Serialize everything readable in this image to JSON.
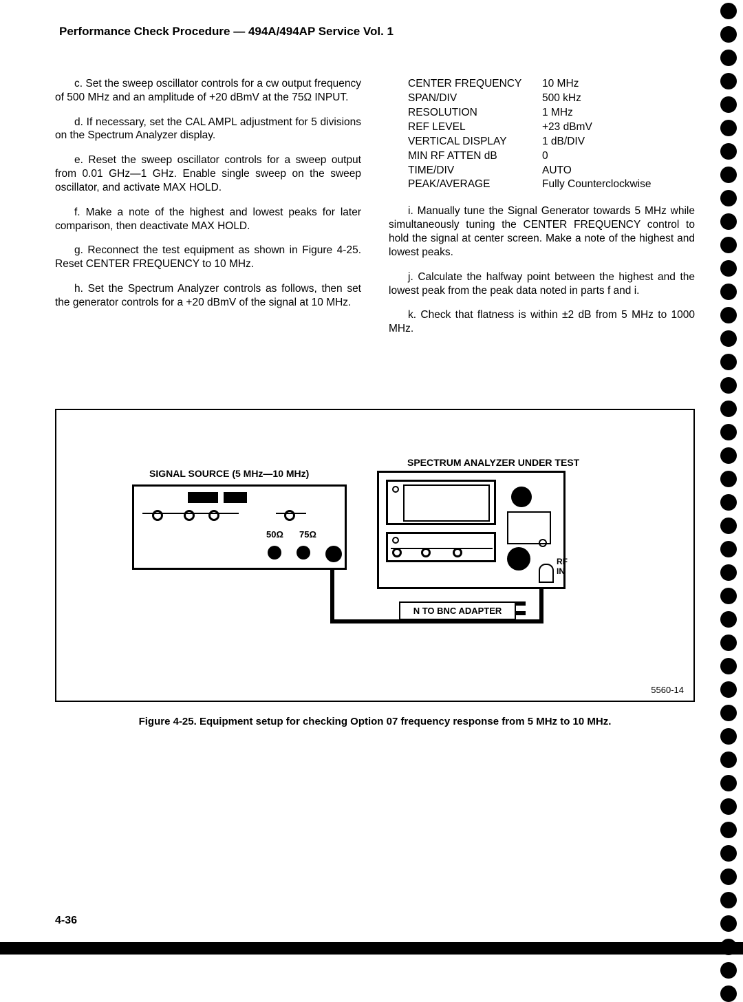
{
  "header": "Performance Check Procedure — 494A/494AP Service Vol. 1",
  "left_paragraphs": [
    "c. Set the sweep oscillator controls for a cw output frequency of 500 MHz and an amplitude of +20 dBmV at the 75Ω INPUT.",
    "d. If necessary, set the CAL AMPL adjustment for 5 divisions on the Spectrum Analyzer display.",
    "e. Reset the sweep oscillator controls for a sweep output from 0.01 GHz—1 GHz. Enable single sweep on the sweep oscillator, and activate MAX HOLD.",
    "f. Make a note of the highest and lowest peaks for later comparison, then deactivate MAX HOLD.",
    "g. Reconnect the test equipment as shown in Figure 4-25. Reset CENTER FREQUENCY to 10 MHz.",
    "h. Set the Spectrum Analyzer controls as follows, then set the generator controls for a +20 dBmV of the signal at 10 MHz."
  ],
  "settings": [
    {
      "label": "CENTER FREQUENCY",
      "value": "10 MHz"
    },
    {
      "label": "SPAN/DIV",
      "value": "500 kHz"
    },
    {
      "label": "RESOLUTION",
      "value": "1 MHz"
    },
    {
      "label": "REF LEVEL",
      "value": "+23 dBmV"
    },
    {
      "label": "VERTICAL DISPLAY",
      "value": "1 dB/DIV"
    },
    {
      "label": "MIN RF ATTEN dB",
      "value": "0"
    },
    {
      "label": "TIME/DIV",
      "value": "AUTO"
    },
    {
      "label": "PEAK/AVERAGE",
      "value": "Fully Counterclockwise"
    }
  ],
  "right_paragraphs": [
    "i. Manually tune the Signal Generator towards 5 MHz while simultaneously tuning the CENTER FREQUENCY control to hold the signal at center screen. Make a note of the highest and lowest peaks.",
    "j. Calculate the halfway point between the highest and the lowest peak from the peak data noted in parts f and i.",
    "k. Check that flatness is within ±2 dB from 5 MHz to 1000 MHz."
  ],
  "figure": {
    "source_label": "SIGNAL SOURCE (5 MHz—10 MHz)",
    "analyzer_label": "SPECTRUM ANALYZER UNDER TEST",
    "imp_50": "50Ω",
    "imp_75": "75Ω",
    "rf_in": "RF IN",
    "adapter": "N TO BNC ADAPTER",
    "fig_num": "5560-14",
    "caption": "Figure 4-25. Equipment setup for checking Option 07 frequency response from 5 MHz to 10 MHz."
  },
  "page_number": "4-36",
  "dot_count": 43
}
